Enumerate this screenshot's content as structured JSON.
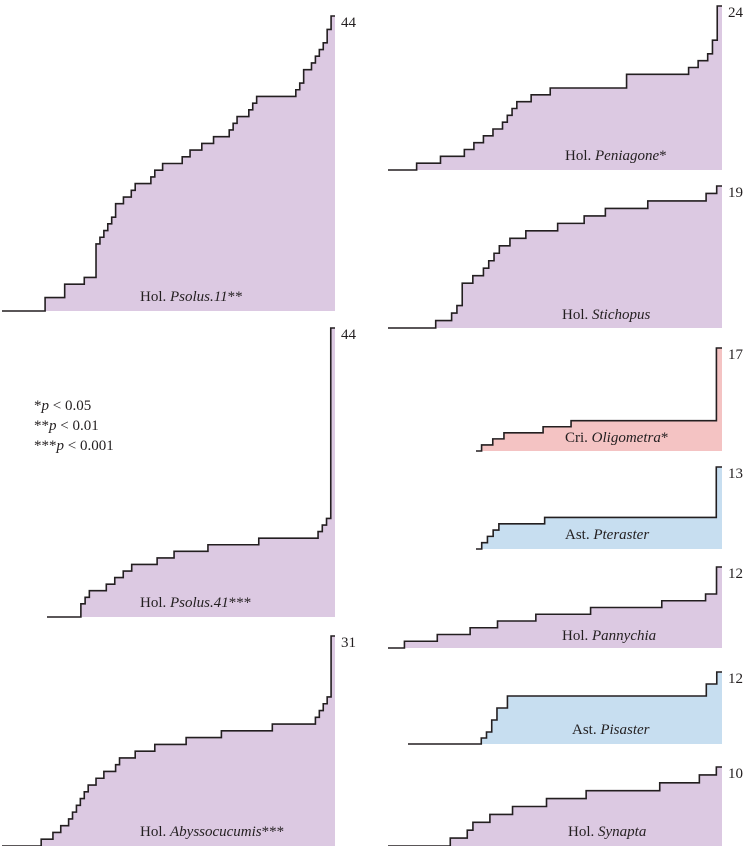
{
  "legend": {
    "lines": [
      {
        "stars": "*",
        "p": "p",
        "rest": " < 0.05"
      },
      {
        "stars": "**",
        "p": "p",
        "rest": " < 0.01"
      },
      {
        "stars": "***",
        "p": "p",
        "rest": " < 0.001"
      }
    ]
  },
  "colors": {
    "holothuroidea": "#dcc9e2",
    "crinoidea": "#f4c3c3",
    "asteroidea": "#c7def0",
    "line": "#231f20"
  },
  "chart_data": [
    {
      "type": "area",
      "id": "psolus11",
      "class_abbr": "Hol.",
      "genus": "Psolus.11",
      "sig": "**",
      "max": "44",
      "fill_key": "holothuroidea",
      "values": [
        0,
        0,
        0,
        0,
        0,
        0,
        0,
        0,
        0,
        0,
        0,
        2,
        2,
        2,
        2,
        2,
        4,
        4,
        4,
        4,
        4,
        5,
        5,
        5,
        10,
        11,
        12,
        13,
        14,
        16,
        16,
        17,
        17,
        18,
        19,
        19,
        19,
        19,
        20,
        21,
        21,
        22,
        22,
        22,
        22,
        22,
        23,
        23,
        24,
        24,
        24,
        25,
        25,
        25,
        26,
        26,
        26,
        26,
        27,
        28,
        29,
        29,
        29,
        30,
        31,
        32,
        32,
        32,
        32,
        32,
        32,
        32,
        32,
        32,
        32,
        33,
        34,
        36,
        36,
        37,
        38,
        39,
        40,
        42,
        44
      ]
    },
    {
      "type": "area",
      "id": "peniagone",
      "class_abbr": "Hol.",
      "genus": "Peniagone",
      "sig": "*",
      "max": "24",
      "fill_key": "holothuroidea",
      "values": [
        0,
        0,
        0,
        0,
        0,
        0,
        1,
        1,
        1,
        1,
        1,
        2,
        2,
        2,
        2,
        2,
        3,
        3,
        4,
        4,
        5,
        5,
        6,
        6,
        7,
        8,
        9,
        10,
        10,
        10,
        11,
        11,
        11,
        11,
        12,
        12,
        12,
        12,
        12,
        12,
        12,
        12,
        12,
        12,
        12,
        12,
        12,
        12,
        12,
        12,
        14,
        14,
        14,
        14,
        14,
        14,
        14,
        14,
        14,
        14,
        14,
        14,
        14,
        15,
        15,
        16,
        16,
        17,
        19,
        24
      ]
    },
    {
      "type": "area",
      "id": "stichopus",
      "class_abbr": "Hol.",
      "genus": "Stichopus",
      "sig": "",
      "max": "19",
      "fill_key": "holothuroidea",
      "values": [
        0,
        0,
        0,
        0,
        0,
        0,
        0,
        0,
        0,
        1,
        1,
        1,
        2,
        3,
        6,
        6,
        7,
        7,
        8,
        9,
        10,
        11,
        11,
        12,
        12,
        12,
        13,
        13,
        13,
        13,
        13,
        13,
        14,
        14,
        14,
        14,
        14,
        15,
        15,
        15,
        15,
        16,
        16,
        16,
        16,
        16,
        16,
        16,
        16,
        17,
        17,
        17,
        17,
        17,
        17,
        17,
        17,
        17,
        17,
        17,
        18,
        18,
        19
      ]
    },
    {
      "type": "area",
      "id": "psolus41",
      "class_abbr": "Hol.",
      "genus": "Psolus.41",
      "sig": "***",
      "max": "44",
      "fill_key": "holothuroidea",
      "values": [
        0,
        0,
        0,
        0,
        0,
        0,
        0,
        0,
        2,
        3,
        4,
        4,
        4,
        4,
        5,
        5,
        6,
        6,
        7,
        7,
        8,
        8,
        8,
        8,
        8,
        8,
        9,
        9,
        9,
        9,
        10,
        10,
        10,
        10,
        10,
        10,
        10,
        10,
        11,
        11,
        11,
        11,
        11,
        11,
        11,
        11,
        11,
        11,
        11,
        11,
        12,
        12,
        12,
        12,
        12,
        12,
        12,
        12,
        12,
        12,
        12,
        12,
        12,
        12,
        13,
        14,
        15,
        44
      ]
    },
    {
      "type": "area",
      "id": "oligometra",
      "class_abbr": "Cri.",
      "genus": "Oligometra",
      "sig": "*",
      "max": "17",
      "fill_key": "crinoidea",
      "values": [
        0,
        1,
        1,
        2,
        2,
        3,
        3,
        3,
        3,
        3,
        3,
        3,
        4,
        4,
        4,
        4,
        4,
        5,
        5,
        5,
        5,
        5,
        5,
        5,
        5,
        5,
        5,
        5,
        5,
        5,
        5,
        5,
        5,
        5,
        5,
        5,
        5,
        5,
        5,
        5,
        5,
        5,
        5,
        17
      ]
    },
    {
      "type": "area",
      "id": "pteraster",
      "class_abbr": "Ast.",
      "genus": "Pteraster",
      "sig": "",
      "max": "13",
      "fill_key": "asteroidea",
      "values": [
        0,
        1,
        2,
        3,
        4,
        4,
        4,
        4,
        4,
        4,
        4,
        4,
        5,
        5,
        5,
        5,
        5,
        5,
        5,
        5,
        5,
        5,
        5,
        5,
        5,
        5,
        5,
        5,
        5,
        5,
        5,
        5,
        5,
        5,
        5,
        5,
        5,
        5,
        5,
        5,
        5,
        5,
        13
      ]
    },
    {
      "type": "area",
      "id": "pannychia",
      "class_abbr": "Hol.",
      "genus": "Pannychia",
      "sig": "",
      "max": "12",
      "fill_key": "holothuroidea",
      "values": [
        0,
        0,
        0,
        1,
        1,
        1,
        1,
        1,
        1,
        2,
        2,
        2,
        2,
        2,
        2,
        3,
        3,
        3,
        3,
        3,
        4,
        4,
        4,
        4,
        4,
        4,
        4,
        5,
        5,
        5,
        5,
        5,
        5,
        5,
        5,
        5,
        5,
        6,
        6,
        6,
        6,
        6,
        6,
        6,
        6,
        6,
        6,
        6,
        6,
        6,
        7,
        7,
        7,
        7,
        7,
        7,
        7,
        7,
        8,
        8,
        12
      ]
    },
    {
      "type": "area",
      "id": "pisaster",
      "class_abbr": "Ast.",
      "genus": "Pisaster",
      "sig": "",
      "max": "12",
      "fill_key": "asteroidea",
      "values": [
        0,
        0,
        0,
        0,
        0,
        0,
        0,
        0,
        0,
        0,
        0,
        0,
        0,
        0,
        1,
        2,
        4,
        6,
        6,
        8,
        8,
        8,
        8,
        8,
        8,
        8,
        8,
        8,
        8,
        8,
        8,
        8,
        8,
        8,
        8,
        8,
        8,
        8,
        8,
        8,
        8,
        8,
        8,
        8,
        8,
        8,
        8,
        8,
        8,
        8,
        8,
        8,
        8,
        8,
        8,
        8,
        8,
        10,
        10,
        12
      ]
    },
    {
      "type": "area",
      "id": "abyssocucumis",
      "class_abbr": "Hol.",
      "genus": "Abyssocucumis",
      "sig": "***",
      "max": "31",
      "fill_key": "holothuroidea",
      "values": [
        0,
        0,
        0,
        0,
        0,
        0,
        0,
        0,
        0,
        0,
        1,
        1,
        1,
        2,
        2,
        3,
        3,
        4,
        5,
        6,
        7,
        8,
        9,
        9,
        10,
        10,
        11,
        11,
        11,
        12,
        13,
        13,
        13,
        13,
        14,
        14,
        14,
        14,
        14,
        15,
        15,
        15,
        15,
        15,
        15,
        15,
        15,
        16,
        16,
        16,
        16,
        16,
        16,
        16,
        16,
        16,
        17,
        17,
        17,
        17,
        17,
        17,
        17,
        17,
        17,
        17,
        17,
        17,
        17,
        18,
        18,
        18,
        18,
        18,
        18,
        18,
        18,
        18,
        18,
        18,
        19,
        20,
        21,
        22,
        31
      ]
    },
    {
      "type": "area",
      "id": "synapta",
      "class_abbr": "Hol.",
      "genus": "Synapta",
      "sig": "",
      "max": "10",
      "fill_key": "holothuroidea",
      "values": [
        0,
        0,
        0,
        0,
        0,
        0,
        0,
        0,
        0,
        0,
        0,
        1,
        1,
        1,
        2,
        3,
        3,
        3,
        4,
        4,
        4,
        4,
        5,
        5,
        5,
        5,
        5,
        5,
        6,
        6,
        6,
        6,
        6,
        6,
        6,
        7,
        7,
        7,
        7,
        7,
        7,
        7,
        7,
        7,
        7,
        7,
        7,
        7,
        8,
        8,
        8,
        8,
        8,
        8,
        8,
        9,
        9,
        9,
        10
      ]
    }
  ]
}
